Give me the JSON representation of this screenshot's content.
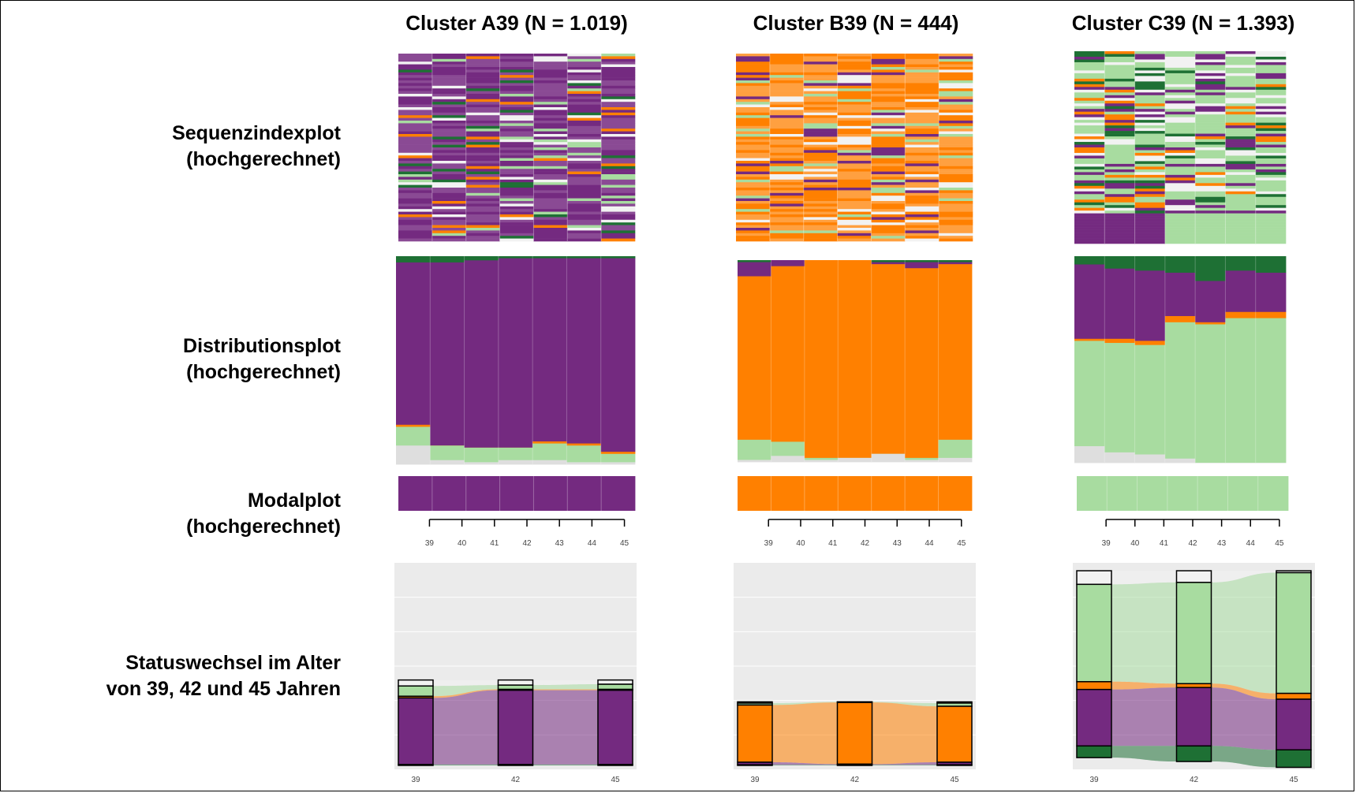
{
  "colors": {
    "purple": "#742a80",
    "orange": "#ff8000",
    "light_green": "#a8dca0",
    "dark_green": "#1e7034",
    "light_gray": "#dedede",
    "white_gray": "#f2f2f2",
    "grid_bg": "#ebebeb"
  },
  "row_labels": [
    {
      "line1": "Sequenzindexplot",
      "line2": "(hochgerechnet)"
    },
    {
      "line1": "Distributionsplot",
      "line2": "(hochgerechnet)"
    },
    {
      "line1": "Modalplot",
      "line2": "(hochgerechnet)"
    },
    {
      "line1": "Statuswechsel im Alter",
      "line2": "von 39, 42 und 45 Jahren"
    }
  ],
  "chart_data": [
    {
      "cluster": "A39",
      "title": "Cluster A39 (N = 1.019)",
      "sequence_index": {
        "type": "heatmap",
        "x": [
          39,
          40,
          41,
          42,
          43,
          44,
          45
        ],
        "dominant_state": "purple",
        "secondary_states": [
          "light_green",
          "white_gray",
          "dark_green",
          "orange"
        ]
      },
      "distribution": {
        "type": "area",
        "x": [
          39,
          40,
          41,
          42,
          43,
          44,
          45
        ],
        "series": [
          {
            "state": "dark_green",
            "values": [
              0.03,
              0.03,
              0.02,
              0.01,
              0.01,
              0.01,
              0.01
            ]
          },
          {
            "state": "purple",
            "values": [
              0.78,
              0.88,
              0.9,
              0.91,
              0.88,
              0.89,
              0.93
            ]
          },
          {
            "state": "orange",
            "values": [
              0.01,
              0.0,
              0.0,
              0.0,
              0.01,
              0.01,
              0.01
            ]
          },
          {
            "state": "light_green",
            "values": [
              0.09,
              0.07,
              0.07,
              0.06,
              0.08,
              0.08,
              0.04
            ]
          },
          {
            "state": "light_gray",
            "values": [
              0.09,
              0.02,
              0.01,
              0.02,
              0.02,
              0.01,
              0.01
            ]
          }
        ]
      },
      "modal": {
        "type": "bar",
        "x": [
          39,
          40,
          41,
          42,
          43,
          44,
          45
        ],
        "state": "purple"
      },
      "alluvial": {
        "type": "bar",
        "x": [
          39,
          42,
          45
        ],
        "states_top_to_bottom": [
          "white_gray",
          "light_green",
          "orange",
          "purple",
          "dark_green"
        ],
        "stacks": [
          [
            0.07,
            0.12,
            0.02,
            0.78,
            0.01
          ],
          [
            0.06,
            0.05,
            0.01,
            0.87,
            0.01
          ],
          [
            0.05,
            0.06,
            0.01,
            0.87,
            0.01
          ]
        ],
        "scale": 0.43
      }
    },
    {
      "cluster": "B39",
      "title": "Cluster B39 (N = 444)",
      "sequence_index": {
        "type": "heatmap",
        "x": [
          39,
          40,
          41,
          42,
          43,
          44,
          45
        ],
        "dominant_state": "orange",
        "secondary_states": [
          "light_green",
          "purple",
          "white_gray"
        ]
      },
      "distribution": {
        "type": "area",
        "x": [
          39,
          40,
          41,
          42,
          43,
          44,
          45
        ],
        "series": [
          {
            "state": "dark_green",
            "values": [
              0.01,
              0.0,
              0.0,
              0.0,
              0.01,
              0.01,
              0.01
            ]
          },
          {
            "state": "purple",
            "values": [
              0.07,
              0.03,
              0.0,
              0.0,
              0.01,
              0.03,
              0.01
            ]
          },
          {
            "state": "orange",
            "values": [
              0.81,
              0.87,
              0.98,
              0.98,
              0.94,
              0.94,
              0.87
            ]
          },
          {
            "state": "light_green",
            "values": [
              0.1,
              0.07,
              0.01,
              0.0,
              0.0,
              0.01,
              0.09
            ]
          },
          {
            "state": "light_gray",
            "values": [
              0.01,
              0.03,
              0.01,
              0.02,
              0.04,
              0.01,
              0.02
            ]
          }
        ]
      },
      "modal": {
        "type": "bar",
        "x": [
          39,
          40,
          41,
          42,
          43,
          44,
          45
        ],
        "state": "orange"
      },
      "alluvial": {
        "type": "bar",
        "x": [
          39,
          42,
          45
        ],
        "states_top_to_bottom": [
          "white_gray",
          "light_green",
          "orange",
          "purple",
          "dark_green"
        ],
        "stacks": [
          [
            0.02,
            0.03,
            0.9,
            0.04,
            0.01
          ],
          [
            0.0,
            0.01,
            0.97,
            0.01,
            0.01
          ],
          [
            0.02,
            0.05,
            0.88,
            0.04,
            0.01
          ]
        ],
        "scale": 0.32
      }
    },
    {
      "cluster": "C39",
      "title": "Cluster C39 (N = 1.393)",
      "sequence_index": {
        "type": "heatmap",
        "x": [
          39,
          40,
          41,
          42,
          43,
          44,
          45
        ],
        "dominant_state": "light_green",
        "secondary_states": [
          "white_gray",
          "purple",
          "dark_green",
          "orange"
        ]
      },
      "distribution": {
        "type": "area",
        "x": [
          39,
          40,
          41,
          42,
          43,
          44,
          45
        ],
        "series": [
          {
            "state": "dark_green",
            "values": [
              0.04,
              0.06,
              0.07,
              0.08,
              0.12,
              0.07,
              0.08
            ]
          },
          {
            "state": "purple",
            "values": [
              0.36,
              0.34,
              0.34,
              0.21,
              0.2,
              0.2,
              0.19
            ]
          },
          {
            "state": "orange",
            "values": [
              0.01,
              0.02,
              0.02,
              0.03,
              0.01,
              0.03,
              0.03
            ]
          },
          {
            "state": "light_green",
            "values": [
              0.51,
              0.53,
              0.53,
              0.66,
              0.67,
              0.7,
              0.7
            ]
          },
          {
            "state": "light_gray",
            "values": [
              0.08,
              0.05,
              0.04,
              0.02,
              0.0,
              0.0,
              0.0
            ]
          }
        ]
      },
      "modal": {
        "type": "bar",
        "x": [
          39,
          40,
          41,
          42,
          43,
          44,
          45
        ],
        "state": "light_green"
      },
      "alluvial": {
        "type": "bar",
        "x": [
          39,
          42,
          45
        ],
        "states_top_to_bottom": [
          "white_gray",
          "light_green",
          "orange",
          "purple",
          "dark_green"
        ],
        "stacks": [
          [
            0.07,
            0.5,
            0.04,
            0.29,
            0.06
          ],
          [
            0.06,
            0.52,
            0.02,
            0.3,
            0.08
          ],
          [
            0.01,
            0.62,
            0.03,
            0.26,
            0.09
          ]
        ],
        "scale": 0.98
      }
    }
  ]
}
